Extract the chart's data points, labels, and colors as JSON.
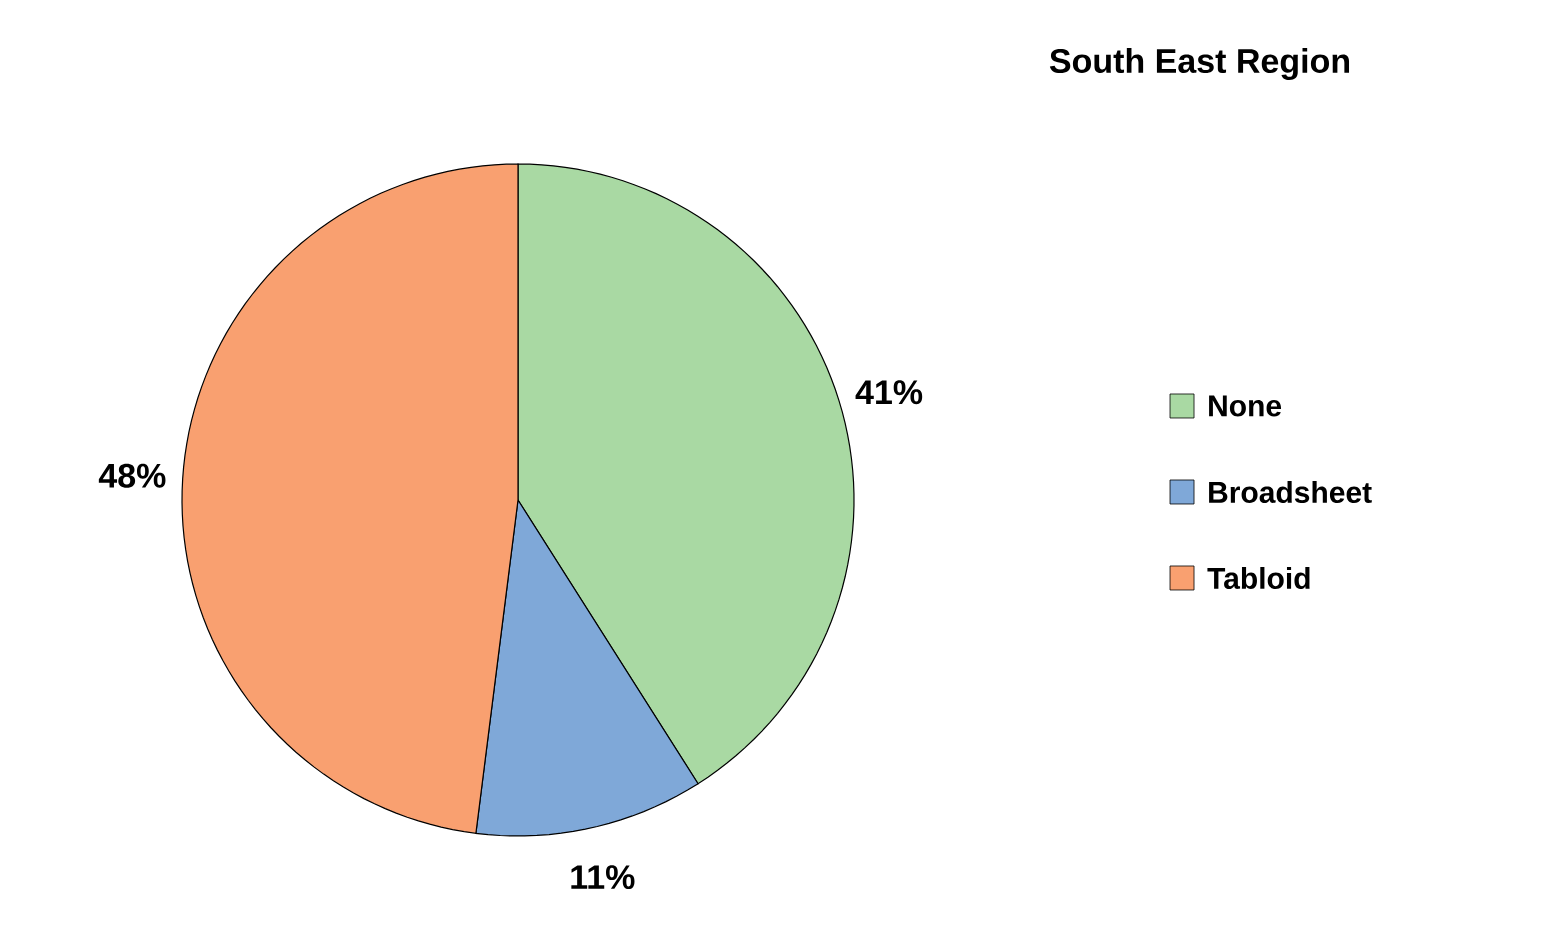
{
  "chart_data": {
    "type": "pie",
    "title": "South East Region",
    "categories": [
      "None",
      "Broadsheet",
      "Tabloid"
    ],
    "values": [
      41,
      11,
      48
    ],
    "value_labels": [
      "41%",
      "11%",
      "48%"
    ],
    "colors": [
      "#a9d9a3",
      "#7fa8d8",
      "#f9a070"
    ],
    "legend": "right"
  }
}
